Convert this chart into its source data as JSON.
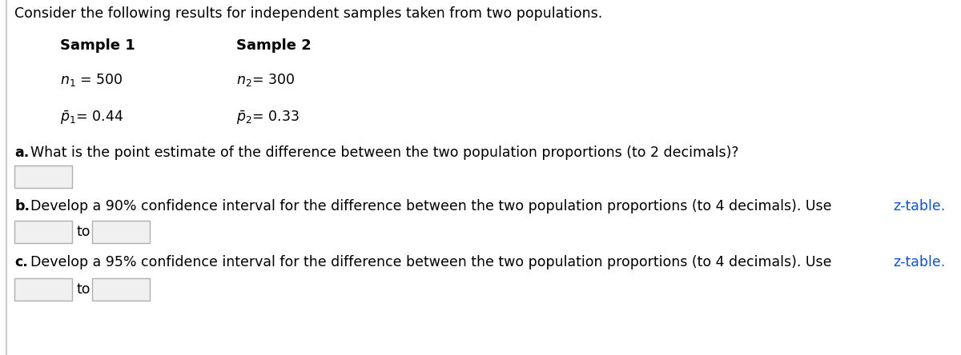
{
  "title_text": "Consider the following results for independent samples taken from two populations.",
  "sample1_header": "Sample 1",
  "sample2_header": "Sample 2",
  "q_a_bold": "a.",
  "q_a_text": "What is the point estimate of the difference between the two population proportions (to 2 decimals)?",
  "q_b_bold": "b.",
  "q_b_text": "Develop a 90% confidence interval for the difference between the two population proportions (to 4 decimals). Use ",
  "q_b_link": "z-table.",
  "q_c_bold": "c.",
  "q_c_text": "Develop a 95% confidence interval for the difference between the two population proportions (to 4 decimals). Use ",
  "q_c_link": "z-table.",
  "to_text": "to",
  "bg_color": "#ffffff",
  "text_color": "#000000",
  "link_color": "#1155CC",
  "box_edge_color": "#b0b0b0",
  "box_fill_color": "#f0f0f0",
  "title_fontsize": 12.5,
  "header_fontsize": 13,
  "body_fontsize": 12.5
}
